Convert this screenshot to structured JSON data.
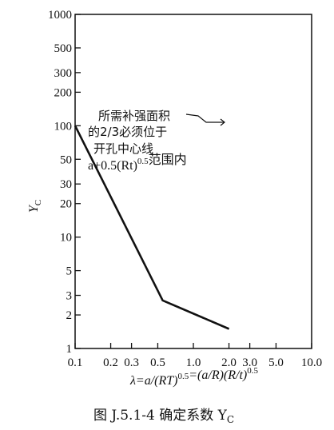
{
  "chart_data": {
    "type": "line",
    "x_scale": "log",
    "y_scale": "log",
    "xlim": [
      0.1,
      10.0
    ],
    "ylim": [
      1,
      1000
    ],
    "x_ticks": [
      {
        "value": 0.1,
        "label": "0.1"
      },
      {
        "value": 0.2,
        "label": "0.2"
      },
      {
        "value": 0.3,
        "label": "0.3"
      },
      {
        "value": 0.5,
        "label": "0.5"
      },
      {
        "value": 1.0,
        "label": "1.0"
      },
      {
        "value": 2.0,
        "label": "2.0"
      },
      {
        "value": 3.0,
        "label": "3.0"
      },
      {
        "value": 5.0,
        "label": "5.0"
      },
      {
        "value": 10.0,
        "label": "10.0"
      }
    ],
    "y_ticks": [
      {
        "value": 1,
        "label": "1"
      },
      {
        "value": 2,
        "label": "2"
      },
      {
        "value": 3,
        "label": "3"
      },
      {
        "value": 5,
        "label": "5"
      },
      {
        "value": 10,
        "label": "10"
      },
      {
        "value": 20,
        "label": "20"
      },
      {
        "value": 30,
        "label": "30"
      },
      {
        "value": 50,
        "label": "50"
      },
      {
        "value": 100,
        "label": "100"
      },
      {
        "value": 200,
        "label": "200"
      },
      {
        "value": 300,
        "label": "300"
      },
      {
        "value": 500,
        "label": "500"
      },
      {
        "value": 1000,
        "label": "1000"
      }
    ],
    "grid": false,
    "series": [
      {
        "x": [
          0.1,
          0.55,
          2.0
        ],
        "y": [
          100,
          2.7,
          1.5
        ]
      }
    ],
    "ylabel": "Y_C",
    "xlabel": "λ=a/(RT)^0.5=(a/R)(R/t)^0.5",
    "annotation_lines": [
      "所需补强面积",
      "的2/3必须位于",
      "开孔中心线",
      "a+0.5(Rt)^0.5范围内"
    ],
    "caption": "图 J.5.1-4  确定系数 Y_C"
  }
}
